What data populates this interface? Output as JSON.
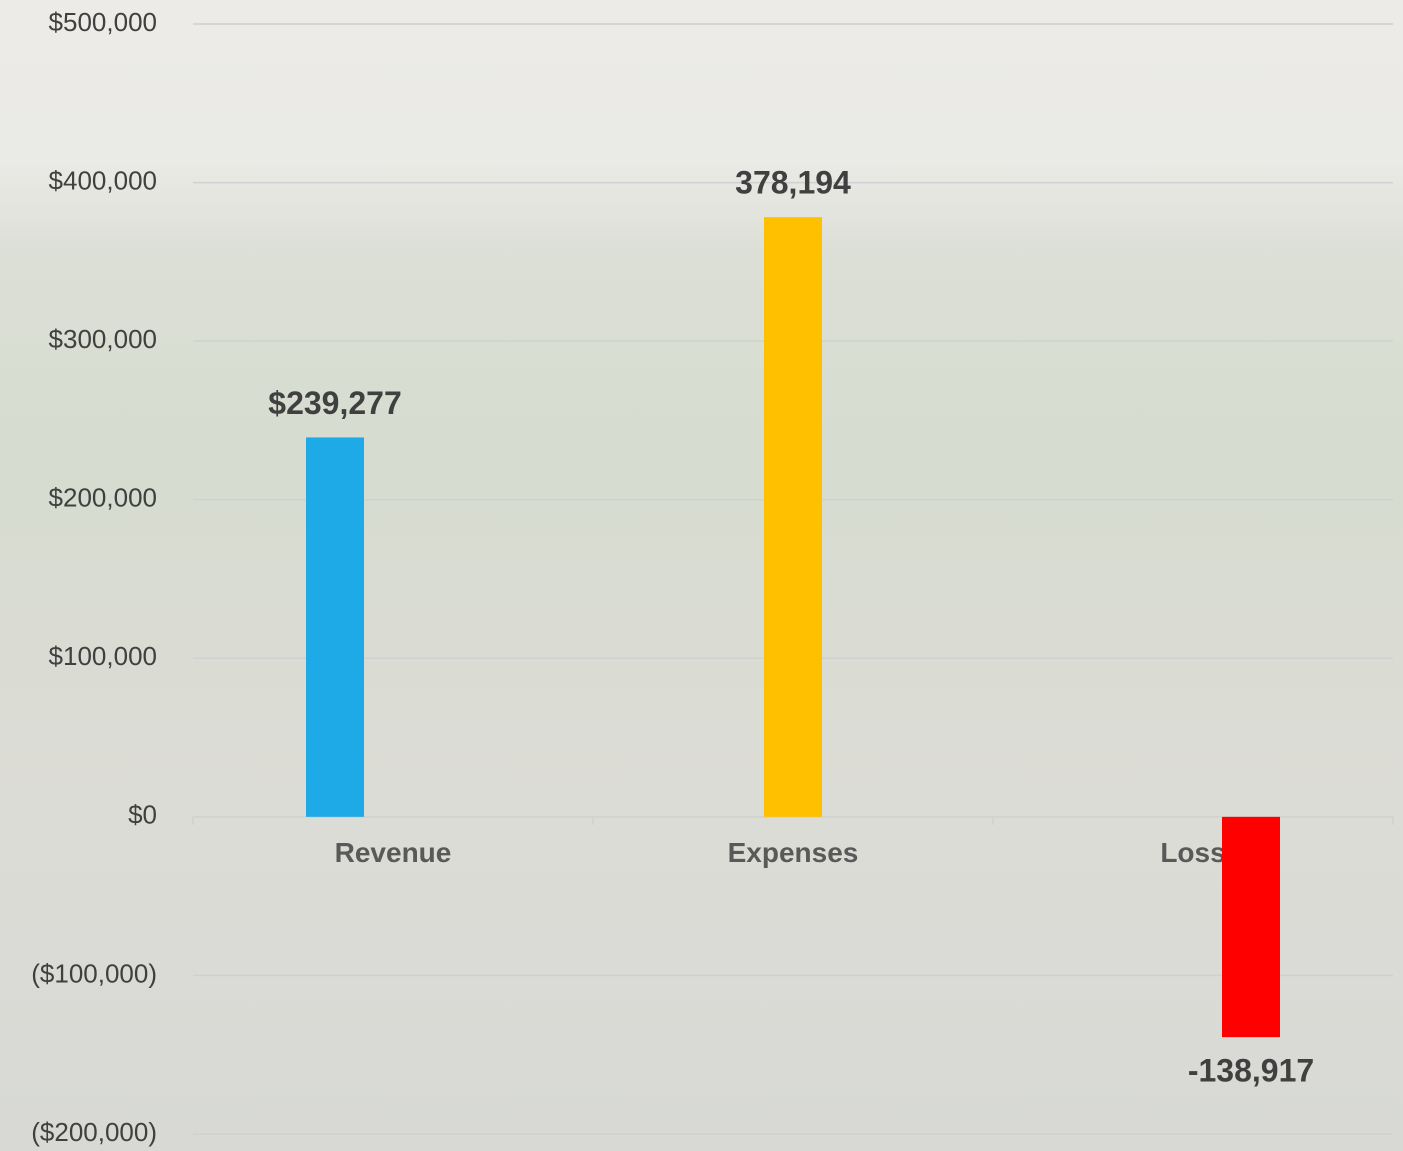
{
  "chart_data": {
    "type": "bar",
    "categories": [
      "Revenue",
      "Expenses",
      "Loss"
    ],
    "values": [
      239277,
      378194,
      -138917
    ],
    "value_labels": [
      "$239,277",
      "378,194",
      "-138,917"
    ],
    "colors": [
      "#1eaae7",
      "#ffc000",
      "#ff0000"
    ],
    "ylim": [
      -200000,
      500000
    ],
    "yticks": [
      {
        "value": -200000,
        "label": "($200,000)"
      },
      {
        "value": -100000,
        "label": "($100,000)"
      },
      {
        "value": 0,
        "label": "$0"
      },
      {
        "value": 100000,
        "label": "$100,000"
      },
      {
        "value": 200000,
        "label": "$200,000"
      },
      {
        "value": 300000,
        "label": "$300,000"
      },
      {
        "value": 400000,
        "label": "$400,000"
      },
      {
        "value": 500000,
        "label": "$500,000"
      }
    ],
    "negative_tick_color": "#ff0000",
    "grid": true
  }
}
